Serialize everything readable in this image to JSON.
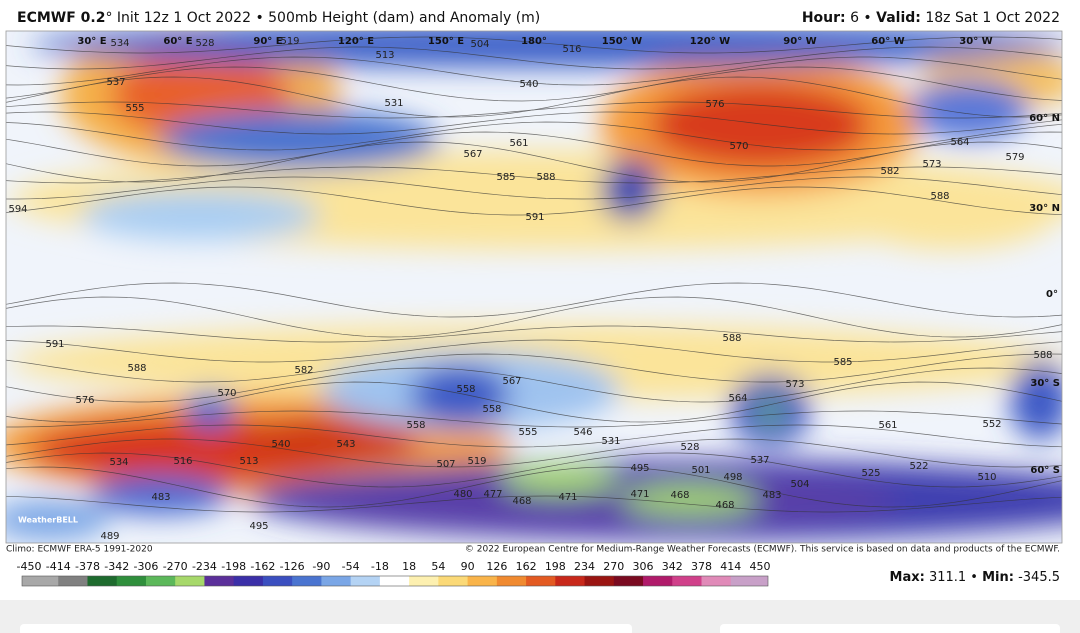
{
  "header": {
    "model": "ECMWF 0.2",
    "title": "° Init 12z 1 Oct 2022 • 500mb Height (dam) and Anomaly (m)",
    "hour_label": "Hour:",
    "hour": " 6 • ",
    "valid_label": "Valid:",
    "valid": " 18z Sat 1 Oct 2022"
  },
  "map": {
    "longitudes": [
      "30° E",
      "60° E",
      "90° E",
      "120° E",
      "150° E",
      "180°",
      "150° W",
      "120° W",
      "90° W",
      "60° W",
      "30° W"
    ],
    "latitudes": [
      "60° N",
      "30° N",
      "0°",
      "30° S",
      "60° S"
    ],
    "contours": [
      "534",
      "528",
      "519",
      "513",
      "504",
      "516",
      "537",
      "555",
      "531",
      "567",
      "585",
      "588",
      "591",
      "540",
      "561",
      "576",
      "570",
      "564",
      "573",
      "582",
      "588",
      "579",
      "594",
      "591",
      "588",
      "576",
      "570",
      "582",
      "558",
      "558",
      "567",
      "558",
      "540",
      "543",
      "555",
      "546",
      "531",
      "528",
      "519",
      "507",
      "534",
      "516",
      "513",
      "495",
      "501",
      "498",
      "537",
      "525",
      "522",
      "510",
      "504",
      "483",
      "480",
      "477",
      "468",
      "471",
      "471",
      "468",
      "468",
      "483",
      "489",
      "495",
      "588",
      "585",
      "573",
      "564",
      "561",
      "588",
      "552"
    ],
    "branding": "WeatherBELL"
  },
  "footer": {
    "climo": "Climo: ECMWF ERA-5 1991-2020",
    "copyright": "© 2022 European Centre for Medium-Range Weather Forecasts (ECMWF). This service is based on data and products of the ECMWF.",
    "colorbar": {
      "ticks": [
        -450,
        -414,
        -378,
        -342,
        -306,
        -270,
        -234,
        -198,
        -162,
        -126,
        -90,
        -54,
        -18,
        18,
        54,
        90,
        126,
        162,
        198,
        234,
        270,
        306,
        342,
        378,
        414,
        450
      ],
      "colors": [
        "#a8a8a8",
        "#808080",
        "#1e6b2e",
        "#2f8f3c",
        "#5cb85a",
        "#a6d86a",
        "#5b2f9a",
        "#3b2fa8",
        "#3b4fc0",
        "#4a74d0",
        "#7aa6e6",
        "#b4d3f4",
        "#ffffff",
        "#fdf0b0",
        "#fbd977",
        "#f9b44a",
        "#f08a30",
        "#e35a22",
        "#c8281a",
        "#9a1412",
        "#7a0a20",
        "#b01a6a",
        "#d0408a",
        "#e08ab8",
        "#c8a0c8"
      ]
    },
    "max_label": "Max:",
    "max": " 311.1 • ",
    "min_label": "Min:",
    "min": " -345.5"
  }
}
